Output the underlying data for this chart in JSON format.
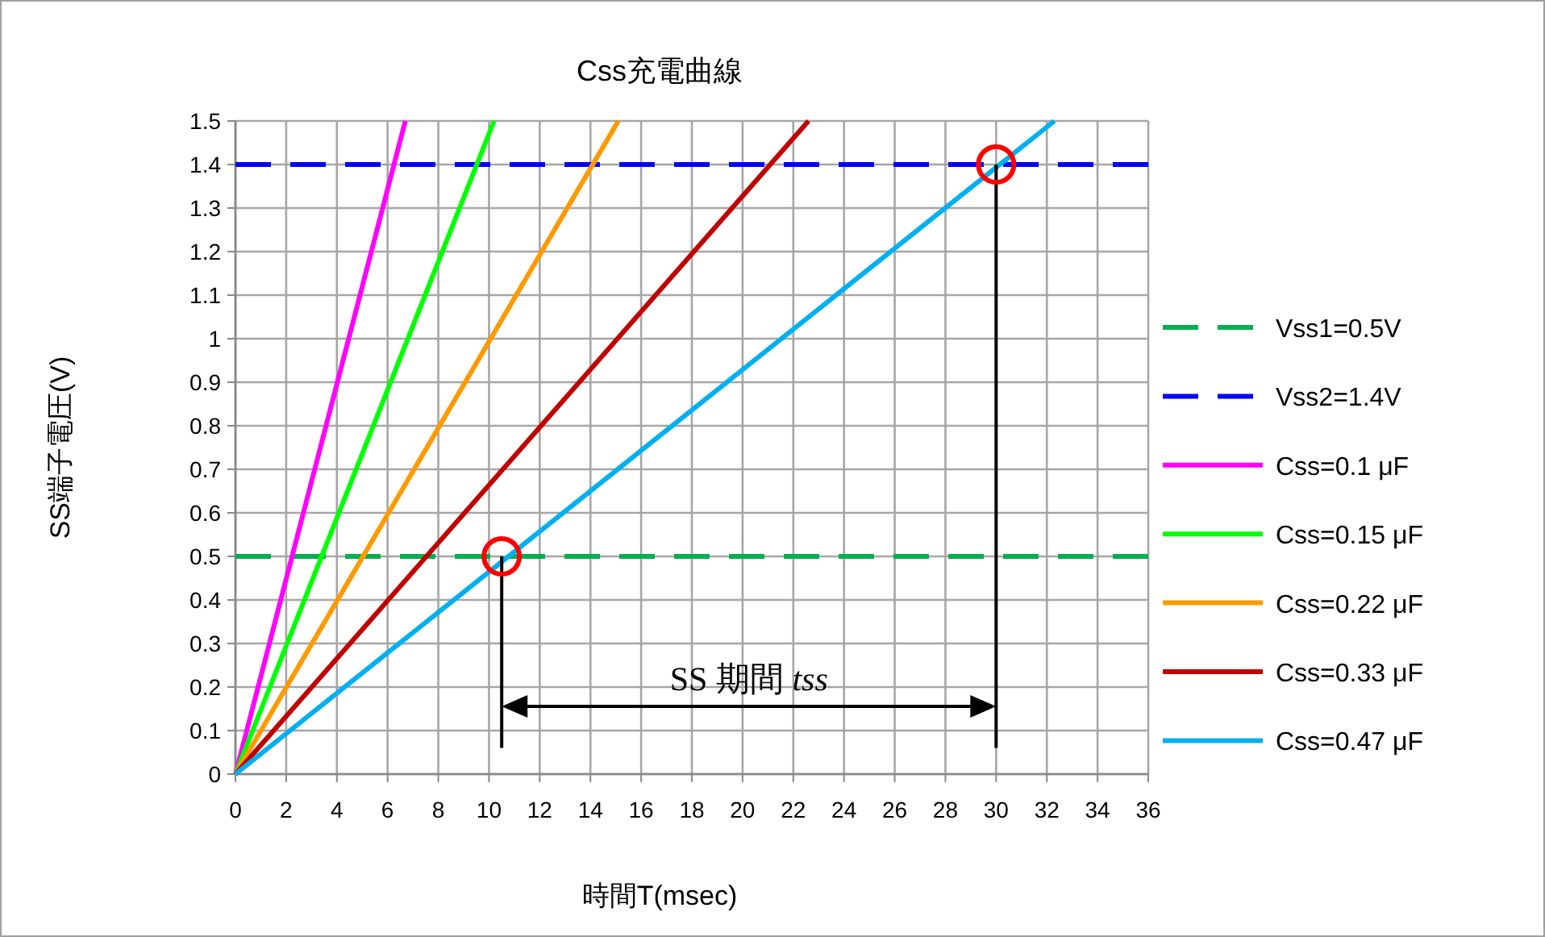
{
  "chart_data": {
    "type": "line",
    "title": "Css充電曲線",
    "xlabel": "時間T(msec)",
    "ylabel": "SS端子電圧(V)",
    "xlim": [
      0,
      36
    ],
    "ylim": [
      0,
      1.5
    ],
    "xticks": [
      0,
      2,
      4,
      6,
      8,
      10,
      12,
      14,
      16,
      18,
      20,
      22,
      24,
      26,
      28,
      30,
      32,
      34,
      36
    ],
    "yticks": [
      0,
      0.1,
      0.2,
      0.3,
      0.4,
      0.5,
      0.6,
      0.7,
      0.8,
      0.9,
      1,
      1.1,
      1.2,
      1.3,
      1.4,
      1.5
    ],
    "grid": true,
    "legend": "right",
    "annotations": [
      "SS 期間  *tss*"
    ],
    "series": [
      {
        "name": "Vss1=0.5V",
        "color": "#00b050",
        "line_style": "dashed",
        "x": [
          0,
          36
        ],
        "values": [
          0.5,
          0.5
        ]
      },
      {
        "name": "Vss2=1.4V",
        "color": "#0000ff",
        "line_style": "dashed",
        "x": [
          0,
          36
        ],
        "values": [
          1.4,
          1.4
        ]
      },
      {
        "name": "Css=0.1 μF",
        "color": "#ff00ff",
        "line_style": "solid",
        "x": [
          0,
          6.7
        ],
        "values": [
          0,
          1.5
        ]
      },
      {
        "name": "Css=0.15 μF",
        "color": "#00ff00",
        "line_style": "solid",
        "x": [
          0,
          10.2
        ],
        "values": [
          0,
          1.5
        ]
      },
      {
        "name": "Css=0.22 μF",
        "color": "#ff9900",
        "line_style": "solid",
        "x": [
          0,
          15.1
        ],
        "values": [
          0,
          1.5
        ]
      },
      {
        "name": "Css=0.33 μF",
        "color": "#c00000",
        "line_style": "solid",
        "x": [
          0,
          22.6
        ],
        "values": [
          0,
          1.5
        ]
      },
      {
        "name": "Css=0.47 μF",
        "color": "#00b0f0",
        "line_style": "solid",
        "x": [
          0,
          32.3
        ],
        "values": [
          0,
          1.5
        ]
      },
      {
        "color": "#000000",
        "line_style": "solid",
        "x": [
          10.5,
          10.5
        ],
        "values": [
          0.06,
          0.5
        ]
      },
      {
        "color": "#000000",
        "line_style": "solid",
        "x": [
          30,
          30
        ],
        "values": [
          0.06,
          1.4
        ]
      },
      {
        "type": "scatter",
        "color": "#ff0000",
        "marker": "circle",
        "x": [
          10.5,
          30
        ],
        "values": [
          0.5,
          1.4
        ]
      }
    ]
  }
}
